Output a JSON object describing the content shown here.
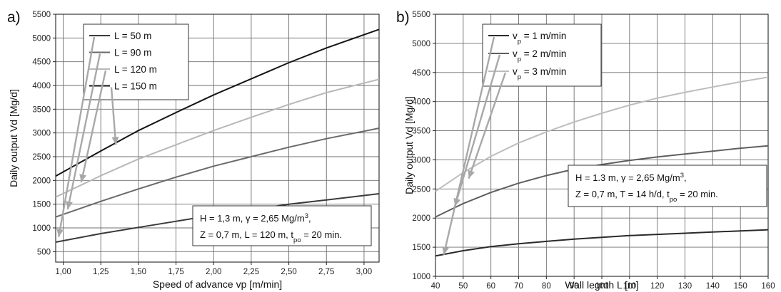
{
  "chart_data": [
    {
      "panel_label": "a)",
      "type": "line",
      "xlabel": "Speed of advance vp [m/min]",
      "ylabel": "Daily output Vd [Mg/d]",
      "xlim": [
        0.95,
        3.1
      ],
      "ylim": [
        280,
        5500
      ],
      "x_ticks": [
        1.0,
        1.25,
        1.5,
        1.75,
        2.0,
        2.25,
        2.5,
        2.75,
        3.0
      ],
      "x_tick_labels": [
        "1,00",
        "1,25",
        "1,50",
        "1,75",
        "2,00",
        "2,25",
        "2,50",
        "2,75",
        "3,00"
      ],
      "y_ticks": [
        500,
        1000,
        1500,
        2000,
        2500,
        3000,
        3500,
        4000,
        4500,
        5000,
        5500
      ],
      "y_tick_labels": [
        "500",
        "1000",
        "1500",
        "2000",
        "2500",
        "3000",
        "3500",
        "4000",
        "4500",
        "5000",
        "5500"
      ],
      "grid": true,
      "legend_position": "top-left",
      "series": [
        {
          "name": "L = 50 m",
          "color": "#3a3a3a",
          "x": [
            0.95,
            1.25,
            1.5,
            1.75,
            2.0,
            2.25,
            2.5,
            2.75,
            3.1
          ],
          "y": [
            700,
            880,
            1010,
            1140,
            1270,
            1380,
            1500,
            1590,
            1720
          ]
        },
        {
          "name": "L = 90 m",
          "color": "#6a6a6a",
          "x": [
            0.95,
            1.25,
            1.5,
            1.75,
            2.0,
            2.25,
            2.5,
            2.75,
            3.1
          ],
          "y": [
            1230,
            1560,
            1820,
            2070,
            2300,
            2500,
            2700,
            2880,
            3100
          ]
        },
        {
          "name": "L = 120 m",
          "color": "#b8b8b8",
          "x": [
            0.95,
            1.25,
            1.5,
            1.75,
            2.0,
            2.25,
            2.5,
            2.75,
            3.1
          ],
          "y": [
            1650,
            2100,
            2450,
            2750,
            3050,
            3330,
            3600,
            3850,
            4130
          ]
        },
        {
          "name": "L = 150 m",
          "color": "#151515",
          "x": [
            0.95,
            1.25,
            1.5,
            1.75,
            2.0,
            2.25,
            2.5,
            2.75,
            3.1
          ],
          "y": [
            2090,
            2620,
            3050,
            3430,
            3800,
            4140,
            4480,
            4790,
            5180
          ]
        }
      ],
      "legend": [
        {
          "main": "L = 50 m",
          "sub": "",
          "tail": ""
        },
        {
          "main": "L = 90 m",
          "sub": "",
          "tail": ""
        },
        {
          "main": "L = 120 m",
          "sub": "",
          "tail": ""
        },
        {
          "main": "L = 150 m",
          "sub": "",
          "tail": ""
        }
      ],
      "annotation_lines": [
        [
          [
            "H = 1,3 m, ",
            ""
          ],
          [
            "γ",
            ""
          ],
          [
            " = 2,65 Mg/m",
            ""
          ],
          [
            "3",
            "sup"
          ],
          [
            ",",
            ""
          ]
        ],
        [
          [
            "Z = 0,7 m, L = 120 m, t",
            ""
          ],
          [
            "po",
            "sub"
          ],
          [
            " = 20 min.",
            ""
          ]
        ]
      ],
      "arrows": [
        {
          "series": 0,
          "x": 0.97,
          "y": 810
        },
        {
          "series": 1,
          "x": 1.03,
          "y": 1390
        },
        {
          "series": 2,
          "x": 1.12,
          "y": 1960
        },
        {
          "series": 3,
          "x": 1.35,
          "y": 2750
        }
      ]
    },
    {
      "panel_label": "b)",
      "type": "line",
      "xlabel": "Wall legnth L [m]",
      "ylabel": "Daily output Vd [Mg/d]",
      "xlim": [
        40,
        160
      ],
      "ylim": [
        1000,
        5500
      ],
      "x_ticks": [
        40,
        50,
        60,
        70,
        80,
        90,
        100,
        110,
        120,
        130,
        140,
        150,
        160
      ],
      "x_tick_labels": [
        "40",
        "50",
        "60",
        "70",
        "80",
        "90",
        "100",
        "110",
        "120",
        "130",
        "140",
        "150",
        "160"
      ],
      "y_ticks": [
        1000,
        1500,
        2000,
        2500,
        3000,
        3500,
        4000,
        4500,
        5000,
        5500
      ],
      "y_tick_labels": [
        "1000",
        "1500",
        "2000",
        "2500",
        "3000",
        "3500",
        "4000",
        "4500",
        "5000",
        "5500"
      ],
      "grid": true,
      "legend_position": "top-left",
      "series": [
        {
          "name": "vp = 1 m/min",
          "color": "#2a2a2a",
          "x": [
            40,
            50,
            60,
            70,
            80,
            90,
            100,
            110,
            120,
            130,
            140,
            150,
            160
          ],
          "y": [
            1350,
            1440,
            1510,
            1560,
            1600,
            1640,
            1670,
            1700,
            1720,
            1740,
            1760,
            1780,
            1800
          ]
        },
        {
          "name": "vp = 2 m/min",
          "color": "#5f5f5f",
          "x": [
            40,
            50,
            60,
            70,
            80,
            90,
            100,
            110,
            120,
            130,
            140,
            150,
            160
          ],
          "y": [
            2020,
            2250,
            2440,
            2600,
            2730,
            2840,
            2920,
            2990,
            3050,
            3100,
            3150,
            3200,
            3240
          ]
        },
        {
          "name": "vp = 3 m/min",
          "color": "#bdbdbd",
          "x": [
            40,
            50,
            60,
            70,
            80,
            90,
            100,
            110,
            120,
            130,
            140,
            150,
            160
          ],
          "y": [
            2460,
            2780,
            3060,
            3290,
            3480,
            3650,
            3800,
            3940,
            4060,
            4160,
            4250,
            4340,
            4420
          ]
        }
      ],
      "legend": [
        {
          "main": "v",
          "sub": "p",
          "tail": " = 1 m/min"
        },
        {
          "main": "v",
          "sub": "p",
          "tail": " = 2 m/min"
        },
        {
          "main": "v",
          "sub": "p",
          "tail": " = 3 m/min"
        }
      ],
      "annotation_lines": [
        [
          [
            "H = 1.3 m, ",
            ""
          ],
          [
            "γ",
            ""
          ],
          [
            " = 2,65 Mg/m",
            ""
          ],
          [
            "3",
            "sup"
          ],
          [
            ",",
            ""
          ]
        ],
        [
          [
            "Z = 0,7 m, T = 14 h/d, t",
            ""
          ],
          [
            "po",
            "sub"
          ],
          [
            " = 20 min.",
            ""
          ]
        ]
      ],
      "arrows": [
        {
          "series": 0,
          "x": 43,
          "y": 1370
        },
        {
          "series": 1,
          "x": 47,
          "y": 2200
        },
        {
          "series": 2,
          "x": 52,
          "y": 2680
        }
      ]
    }
  ]
}
